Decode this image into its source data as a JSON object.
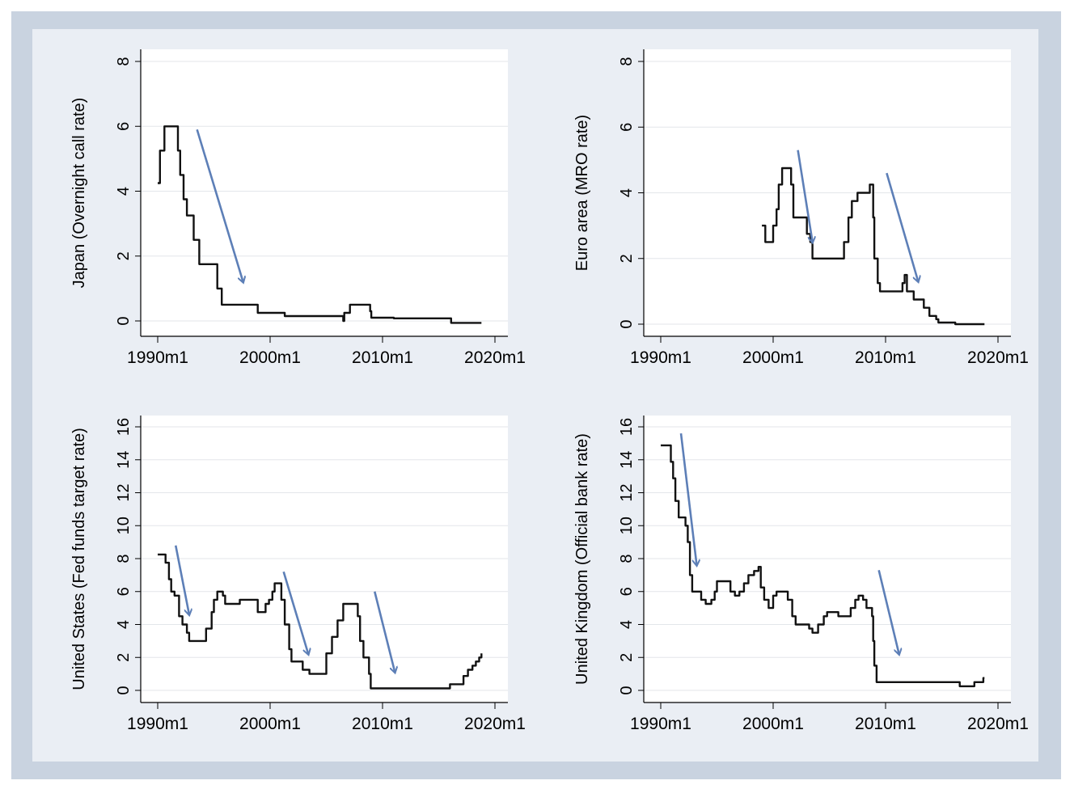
{
  "chart_data": [
    {
      "type": "line",
      "ylabel": "Japan (Overnight call rate)",
      "xlim": [
        1990,
        2020
      ],
      "xticks": [
        1990,
        2000,
        2010,
        2020
      ],
      "xtick_labels": [
        "1990m1",
        "2000m1",
        "2010m1",
        "2020m1"
      ],
      "ylim": [
        0,
        8
      ],
      "yticks": [
        0,
        2,
        4,
        6,
        8
      ],
      "ytick_labels": [
        "0",
        "2",
        "4",
        "6",
        "8"
      ],
      "grid": "horizontal",
      "points": [
        [
          1990.0,
          4.25
        ],
        [
          1990.2,
          5.25
        ],
        [
          1990.6,
          6.0
        ],
        [
          1991.5,
          6.0
        ],
        [
          1991.8,
          5.25
        ],
        [
          1992.0,
          4.5
        ],
        [
          1992.3,
          3.75
        ],
        [
          1992.6,
          3.25
        ],
        [
          1993.2,
          2.5
        ],
        [
          1993.7,
          1.75
        ],
        [
          1995.2,
          1.75
        ],
        [
          1995.3,
          1.0
        ],
        [
          1995.7,
          0.5
        ],
        [
          1998.8,
          0.5
        ],
        [
          1998.9,
          0.25
        ],
        [
          2001.0,
          0.25
        ],
        [
          2001.3,
          0.15
        ],
        [
          2006.5,
          0.0
        ],
        [
          2006.6,
          0.25
        ],
        [
          2007.1,
          0.5
        ],
        [
          2008.8,
          0.5
        ],
        [
          2008.9,
          0.3
        ],
        [
          2009.0,
          0.1
        ],
        [
          2010.9,
          0.1
        ],
        [
          2011.0,
          0.08
        ],
        [
          2013.0,
          0.08
        ],
        [
          2016.1,
          -0.06
        ],
        [
          2018.8,
          -0.06
        ]
      ],
      "arrows": [
        {
          "from": [
            1993.5,
            5.9
          ],
          "to": [
            1997.6,
            1.2
          ]
        }
      ]
    },
    {
      "type": "line",
      "ylabel": "Euro area (MRO rate)",
      "xlim": [
        1990,
        2020
      ],
      "xticks": [
        1990,
        2000,
        2010,
        2020
      ],
      "xtick_labels": [
        "1990m1",
        "2000m1",
        "2010m1",
        "2020m1"
      ],
      "ylim": [
        0,
        8
      ],
      "yticks": [
        0,
        2,
        4,
        6,
        8
      ],
      "ytick_labels": [
        "0",
        "2",
        "4",
        "6",
        "8"
      ],
      "grid": "horizontal",
      "points": [
        [
          1999.0,
          3.0
        ],
        [
          1999.3,
          2.5
        ],
        [
          1999.9,
          2.5
        ],
        [
          2000.0,
          3.0
        ],
        [
          2000.3,
          3.5
        ],
        [
          2000.5,
          4.25
        ],
        [
          2000.8,
          4.75
        ],
        [
          2001.3,
          4.75
        ],
        [
          2001.6,
          4.25
        ],
        [
          2001.8,
          3.25
        ],
        [
          2002.9,
          3.25
        ],
        [
          2003.0,
          2.75
        ],
        [
          2003.3,
          2.5
        ],
        [
          2003.5,
          2.0
        ],
        [
          2005.9,
          2.0
        ],
        [
          2006.3,
          2.5
        ],
        [
          2006.7,
          3.25
        ],
        [
          2007.0,
          3.75
        ],
        [
          2007.5,
          4.0
        ],
        [
          2008.5,
          4.0
        ],
        [
          2008.6,
          4.25
        ],
        [
          2008.8,
          4.25
        ],
        [
          2008.9,
          3.25
        ],
        [
          2009.0,
          2.0
        ],
        [
          2009.3,
          1.25
        ],
        [
          2009.5,
          1.0
        ],
        [
          2011.3,
          1.0
        ],
        [
          2011.5,
          1.25
        ],
        [
          2011.7,
          1.5
        ],
        [
          2011.9,
          1.0
        ],
        [
          2012.5,
          0.75
        ],
        [
          2013.4,
          0.5
        ],
        [
          2013.9,
          0.25
        ],
        [
          2014.5,
          0.15
        ],
        [
          2014.7,
          0.05
        ],
        [
          2016.2,
          0.0
        ],
        [
          2018.8,
          0.0
        ]
      ],
      "arrows": [
        {
          "from": [
            2002.2,
            5.3
          ],
          "to": [
            2003.5,
            2.5
          ]
        },
        {
          "from": [
            2010.1,
            4.6
          ],
          "to": [
            2012.9,
            1.3
          ]
        }
      ]
    },
    {
      "type": "line",
      "ylabel": "United States (Fed funds target rate)",
      "xlim": [
        1990,
        2020
      ],
      "xticks": [
        1990,
        2000,
        2010,
        2020
      ],
      "xtick_labels": [
        "1990m1",
        "2000m1",
        "2010m1",
        "2020m1"
      ],
      "ylim": [
        0,
        16
      ],
      "yticks": [
        0,
        2,
        4,
        6,
        8,
        10,
        12,
        14,
        16
      ],
      "ytick_labels": [
        "0",
        "2",
        "4",
        "6",
        "8",
        "10",
        "12",
        "14",
        "16"
      ],
      "grid": "horizontal",
      "points": [
        [
          1990.0,
          8.25
        ],
        [
          1990.4,
          8.25
        ],
        [
          1990.7,
          7.75
        ],
        [
          1991.0,
          6.75
        ],
        [
          1991.2,
          6.0
        ],
        [
          1991.5,
          5.75
        ],
        [
          1991.9,
          4.5
        ],
        [
          1992.2,
          4.0
        ],
        [
          1992.6,
          3.5
        ],
        [
          1992.8,
          3.0
        ],
        [
          1994.0,
          3.0
        ],
        [
          1994.3,
          3.75
        ],
        [
          1994.8,
          4.75
        ],
        [
          1995.0,
          5.5
        ],
        [
          1995.3,
          6.0
        ],
        [
          1995.8,
          5.75
        ],
        [
          1996.0,
          5.25
        ],
        [
          1997.2,
          5.25
        ],
        [
          1997.3,
          5.5
        ],
        [
          1998.7,
          5.5
        ],
        [
          1998.9,
          4.75
        ],
        [
          1999.4,
          4.75
        ],
        [
          1999.6,
          5.25
        ],
        [
          1999.9,
          5.5
        ],
        [
          2000.2,
          6.0
        ],
        [
          2000.4,
          6.5
        ],
        [
          2000.9,
          6.5
        ],
        [
          2001.0,
          5.5
        ],
        [
          2001.3,
          4.0
        ],
        [
          2001.7,
          2.5
        ],
        [
          2001.9,
          1.75
        ],
        [
          2002.8,
          1.75
        ],
        [
          2002.9,
          1.25
        ],
        [
          2003.5,
          1.0
        ],
        [
          2004.4,
          1.0
        ],
        [
          2005.0,
          2.25
        ],
        [
          2005.5,
          3.25
        ],
        [
          2006.0,
          4.25
        ],
        [
          2006.5,
          5.25
        ],
        [
          2007.6,
          5.25
        ],
        [
          2007.8,
          4.5
        ],
        [
          2008.0,
          3.0
        ],
        [
          2008.3,
          2.0
        ],
        [
          2008.8,
          1.0
        ],
        [
          2008.95,
          0.125
        ],
        [
          2015.9,
          0.125
        ],
        [
          2016.0,
          0.375
        ],
        [
          2016.9,
          0.375
        ],
        [
          2017.2,
          0.875
        ],
        [
          2017.6,
          1.25
        ],
        [
          2018.0,
          1.5
        ],
        [
          2018.3,
          1.75
        ],
        [
          2018.6,
          2.0
        ],
        [
          2018.8,
          2.25
        ]
      ],
      "arrows": [
        {
          "from": [
            1991.6,
            8.8
          ],
          "to": [
            1992.8,
            4.6
          ]
        },
        {
          "from": [
            2001.2,
            7.2
          ],
          "to": [
            2003.4,
            2.2
          ]
        },
        {
          "from": [
            2009.3,
            6.0
          ],
          "to": [
            2011.1,
            1.1
          ]
        }
      ]
    },
    {
      "type": "line",
      "ylabel": "United Kingdom (Official bank rate)",
      "xlim": [
        1990,
        2020
      ],
      "xticks": [
        1990,
        2000,
        2010,
        2020
      ],
      "xtick_labels": [
        "1990m1",
        "2000m1",
        "2010m1",
        "2020m1"
      ],
      "ylim": [
        0,
        16
      ],
      "yticks": [
        0,
        2,
        4,
        6,
        8,
        10,
        12,
        14,
        16
      ],
      "ytick_labels": [
        "0",
        "2",
        "4",
        "6",
        "8",
        "10",
        "12",
        "14",
        "16"
      ],
      "grid": "horizontal",
      "points": [
        [
          1990.0,
          14.875
        ],
        [
          1990.7,
          14.875
        ],
        [
          1990.9,
          13.875
        ],
        [
          1991.1,
          12.875
        ],
        [
          1991.3,
          11.5
        ],
        [
          1991.6,
          10.5
        ],
        [
          1992.2,
          10.0
        ],
        [
          1992.4,
          9.0
        ],
        [
          1992.6,
          7.0
        ],
        [
          1992.8,
          6.0
        ],
        [
          1993.6,
          5.5
        ],
        [
          1994.0,
          5.25
        ],
        [
          1994.5,
          5.5
        ],
        [
          1994.8,
          6.0
        ],
        [
          1995.0,
          6.625
        ],
        [
          1995.9,
          6.625
        ],
        [
          1996.2,
          6.0
        ],
        [
          1996.6,
          5.75
        ],
        [
          1997.0,
          6.0
        ],
        [
          1997.4,
          6.5
        ],
        [
          1997.8,
          7.0
        ],
        [
          1998.3,
          7.25
        ],
        [
          1998.7,
          7.5
        ],
        [
          1998.9,
          6.25
        ],
        [
          1999.2,
          5.5
        ],
        [
          1999.6,
          5.0
        ],
        [
          2000.0,
          5.75
        ],
        [
          2000.3,
          6.0
        ],
        [
          2001.0,
          6.0
        ],
        [
          2001.3,
          5.5
        ],
        [
          2001.7,
          4.5
        ],
        [
          2002.0,
          4.0
        ],
        [
          2003.0,
          4.0
        ],
        [
          2003.2,
          3.75
        ],
        [
          2003.5,
          3.5
        ],
        [
          2004.0,
          4.0
        ],
        [
          2004.5,
          4.5
        ],
        [
          2004.8,
          4.75
        ],
        [
          2005.6,
          4.75
        ],
        [
          2005.8,
          4.5
        ],
        [
          2006.6,
          4.5
        ],
        [
          2006.9,
          5.0
        ],
        [
          2007.3,
          5.5
        ],
        [
          2007.6,
          5.75
        ],
        [
          2008.0,
          5.5
        ],
        [
          2008.3,
          5.0
        ],
        [
          2008.7,
          5.0
        ],
        [
          2008.8,
          4.5
        ],
        [
          2008.9,
          3.0
        ],
        [
          2009.0,
          1.5
        ],
        [
          2009.2,
          0.5
        ],
        [
          2016.5,
          0.5
        ],
        [
          2016.6,
          0.25
        ],
        [
          2017.8,
          0.25
        ],
        [
          2017.9,
          0.5
        ],
        [
          2018.6,
          0.5
        ],
        [
          2018.7,
          0.75
        ],
        [
          2018.8,
          0.75
        ]
      ],
      "arrows": [
        {
          "from": [
            1991.8,
            15.6
          ],
          "to": [
            1993.2,
            7.6
          ]
        },
        {
          "from": [
            2009.4,
            7.3
          ],
          "to": [
            2011.2,
            2.2
          ]
        }
      ]
    }
  ],
  "colors": {
    "frame_outer": "#c9d3e0",
    "frame_inner": "#eaeef4",
    "plot_background": "#ffffff",
    "grid": "#e3e6ea",
    "series_line": "#111111",
    "arrow": "#5d7fb7",
    "axis": "#000000"
  }
}
